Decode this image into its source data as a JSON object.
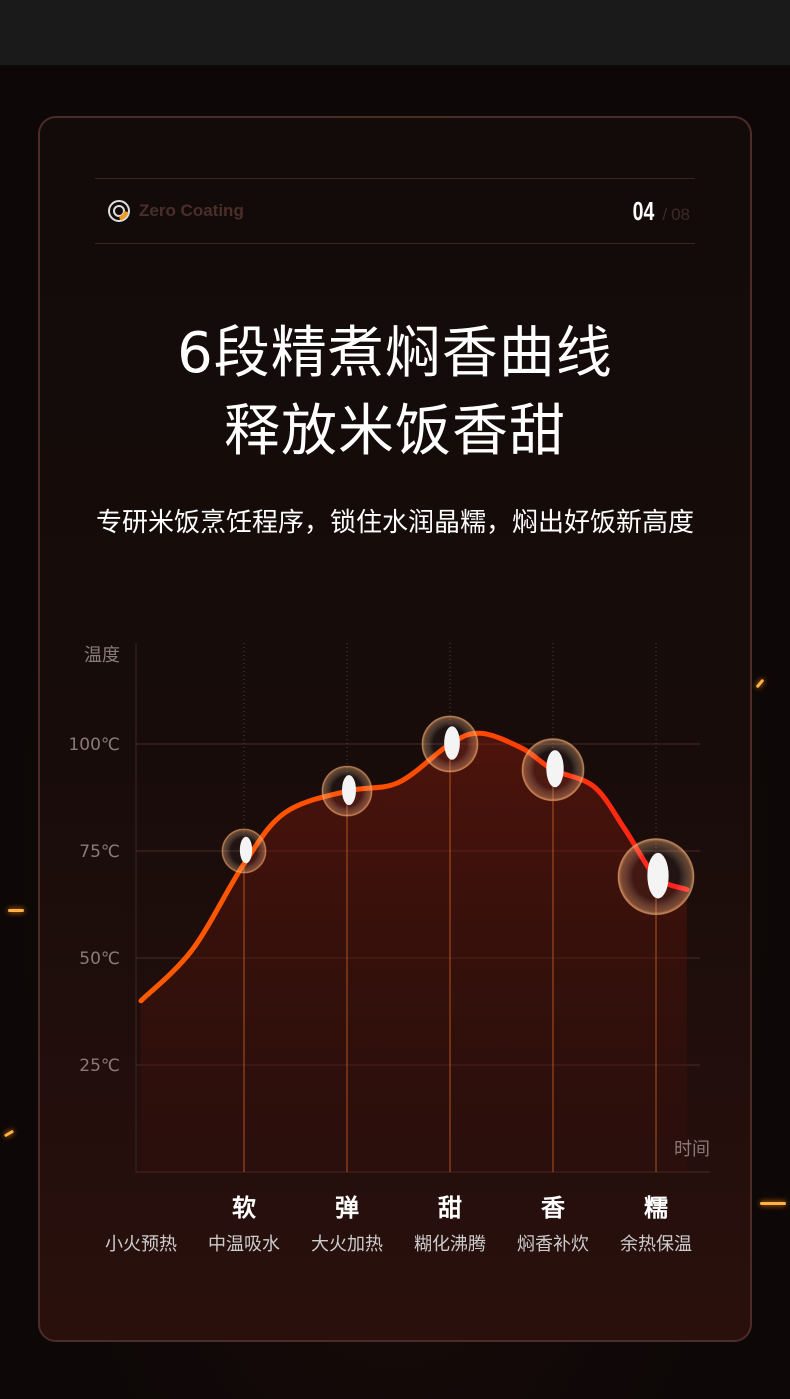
{
  "header": {
    "brand": "Zero Coating",
    "page_current": "04",
    "page_separator": "/",
    "page_total": "08"
  },
  "title_lines": [
    "6段精煮焖香曲线",
    "释放米饭香甜"
  ],
  "subtitle": "专研米饭烹饪程序，锁住水润晶糯，焖出好饭新高度",
  "colors": {
    "curve_start": "#ff5a00",
    "curve_end": "#ff1a1a",
    "accent": "#ff7a1a"
  },
  "chart_data": {
    "type": "line",
    "ylabel": "温度",
    "xlabel": "时间",
    "yticks": [
      "25℃",
      "50℃",
      "75℃",
      "100℃"
    ],
    "ytick_values": [
      25,
      50,
      75,
      100
    ],
    "ylim": [
      0,
      123
    ],
    "grid": true,
    "stage_names": [
      "软",
      "弹",
      "甜",
      "香",
      "糯"
    ],
    "stage_steps": [
      "小火预热",
      "中温吸水",
      "大火加热",
      "糊化沸腾",
      "焖香补炊",
      "余热保温"
    ],
    "series": [
      {
        "points": [
          [
            0,
            40
          ],
          [
            0.5,
            52
          ],
          [
            1,
            72
          ],
          [
            1.4,
            84
          ],
          [
            2,
            89
          ],
          [
            2.5,
            91
          ],
          [
            3,
            100
          ],
          [
            3.3,
            102.5
          ],
          [
            3.7,
            99
          ],
          [
            4,
            94
          ],
          [
            4.4,
            90
          ],
          [
            4.7,
            80
          ],
          [
            5,
            69
          ],
          [
            5.3,
            66
          ]
        ]
      }
    ],
    "markers": [
      {
        "stage": 1,
        "temp": 75
      },
      {
        "stage": 2,
        "temp": 89
      },
      {
        "stage": 3,
        "temp": 100
      },
      {
        "stage": 4,
        "temp": 94
      },
      {
        "stage": 5,
        "temp": 69
      }
    ]
  }
}
